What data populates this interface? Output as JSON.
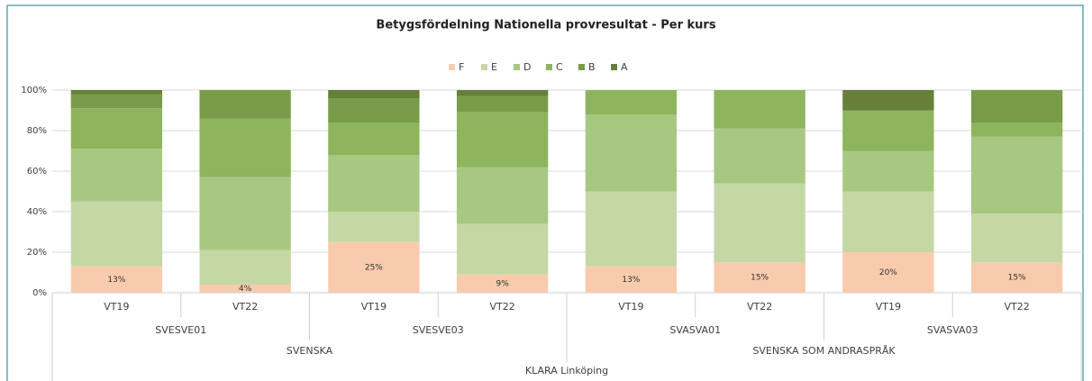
{
  "chart_data": {
    "type": "stacked_bar",
    "title": "Betygsfördelning Nationella provresultat - Per kurs",
    "categories": [
      "VT19",
      "VT22",
      "VT19",
      "VT22",
      "VT19",
      "VT22",
      "VT19",
      "VT22"
    ],
    "groups": [
      "SVESVE01",
      "SVESVE03",
      "SVASVA01",
      "SVASVA03"
    ],
    "supergroups": [
      "SVENSKA",
      "SVENSKA SOM ANDRASPRÅK"
    ],
    "root": "KLARA Linköping",
    "series": [
      {
        "name": "F",
        "color": "#f8cbad",
        "values": [
          13,
          4,
          25,
          9,
          13,
          15,
          20,
          15
        ],
        "value_labels": [
          "13%",
          "4%",
          "25%",
          "9%",
          "13%",
          "15%",
          "20%",
          "15%"
        ]
      },
      {
        "name": "E",
        "color": "#c6d7a6",
        "values": [
          32,
          17,
          15,
          25,
          37,
          39,
          30,
          24
        ]
      },
      {
        "name": "D",
        "color": "#a8c882",
        "values": [
          26,
          36,
          28,
          28,
          38,
          27,
          20,
          38
        ]
      },
      {
        "name": "C",
        "color": "#8db55e",
        "values": [
          20,
          29,
          16,
          27,
          12,
          19,
          20,
          7
        ]
      },
      {
        "name": "B",
        "color": "#7a9c4a",
        "values": [
          7,
          14,
          12,
          8,
          0,
          0,
          0,
          16
        ]
      },
      {
        "name": "A",
        "color": "#677f3a",
        "values": [
          2,
          0,
          4,
          3,
          0,
          0,
          10,
          0
        ]
      }
    ],
    "ylim": [
      0,
      100
    ],
    "yticks": [
      {
        "value": 0,
        "label": "0%"
      },
      {
        "value": 20,
        "label": "20%"
      },
      {
        "value": 40,
        "label": "40%"
      },
      {
        "value": 60,
        "label": "60%"
      },
      {
        "value": 80,
        "label": "80%"
      },
      {
        "value": 100,
        "label": "100%"
      }
    ],
    "grid": true,
    "legend": "top"
  }
}
